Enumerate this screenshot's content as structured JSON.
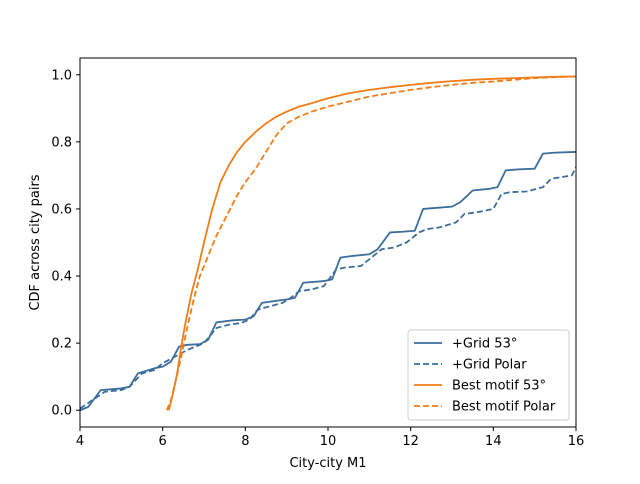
{
  "chart_data": {
    "type": "line",
    "title": "",
    "xlabel": "City-city M1",
    "ylabel": "CDF across city pairs",
    "xlim": [
      4,
      16
    ],
    "ylim": [
      -0.05,
      1.05
    ],
    "xticks": [
      4,
      6,
      8,
      10,
      12,
      14,
      16
    ],
    "yticks": [
      0.0,
      0.2,
      0.4,
      0.6,
      0.8,
      1.0
    ],
    "grid": false,
    "legend": {
      "position": "lower-right"
    },
    "series": [
      {
        "name": "+Grid 53°",
        "color": "#3b6e9b",
        "dash": "solid",
        "x": [
          4.0,
          4.2,
          4.5,
          5.0,
          5.2,
          5.4,
          5.8,
          6.0,
          6.2,
          6.4,
          6.6,
          6.9,
          7.1,
          7.3,
          7.7,
          8.0,
          8.2,
          8.4,
          8.8,
          9.0,
          9.2,
          9.4,
          9.9,
          10.1,
          10.3,
          10.6,
          11.0,
          11.2,
          11.5,
          11.8,
          12.1,
          12.3,
          12.6,
          13.0,
          13.2,
          13.5,
          13.9,
          14.1,
          14.3,
          14.6,
          15.0,
          15.2,
          15.5,
          16.0
        ],
        "y": [
          0.0,
          0.01,
          0.06,
          0.065,
          0.07,
          0.11,
          0.125,
          0.13,
          0.145,
          0.19,
          0.195,
          0.197,
          0.21,
          0.262,
          0.268,
          0.27,
          0.28,
          0.32,
          0.327,
          0.33,
          0.335,
          0.38,
          0.385,
          0.39,
          0.455,
          0.46,
          0.465,
          0.48,
          0.53,
          0.532,
          0.535,
          0.6,
          0.603,
          0.607,
          0.62,
          0.655,
          0.66,
          0.665,
          0.715,
          0.718,
          0.72,
          0.765,
          0.768,
          0.77
        ]
      },
      {
        "name": "+Grid Polar",
        "color": "#3b6e9b",
        "dash": "dashed",
        "x": [
          4.0,
          4.3,
          4.6,
          5.0,
          5.2,
          5.5,
          5.8,
          6.0,
          6.3,
          6.6,
          6.8,
          7.0,
          7.3,
          7.6,
          7.9,
          8.1,
          8.3,
          8.6,
          8.9,
          9.1,
          9.3,
          9.6,
          9.9,
          10.2,
          10.4,
          10.8,
          11.1,
          11.3,
          11.6,
          11.9,
          12.2,
          12.4,
          12.7,
          13.1,
          13.3,
          13.6,
          14.0,
          14.2,
          14.4,
          14.8,
          15.2,
          15.4,
          15.9,
          16.0
        ],
        "y": [
          0.005,
          0.03,
          0.055,
          0.06,
          0.07,
          0.11,
          0.12,
          0.14,
          0.16,
          0.18,
          0.19,
          0.2,
          0.245,
          0.255,
          0.26,
          0.27,
          0.3,
          0.31,
          0.32,
          0.335,
          0.355,
          0.36,
          0.37,
          0.42,
          0.425,
          0.43,
          0.46,
          0.48,
          0.485,
          0.5,
          0.53,
          0.54,
          0.545,
          0.56,
          0.585,
          0.59,
          0.6,
          0.645,
          0.65,
          0.652,
          0.665,
          0.69,
          0.7,
          0.725
        ]
      },
      {
        "name": "Best motif 53°",
        "color": "#f07d1a",
        "dash": "solid",
        "x": [
          6.15,
          6.25,
          6.35,
          6.45,
          6.55,
          6.7,
          6.85,
          7.0,
          7.2,
          7.4,
          7.6,
          7.8,
          8.0,
          8.25,
          8.5,
          8.75,
          9.0,
          9.3,
          9.6,
          10.0,
          10.5,
          11.0,
          11.5,
          12.0,
          12.5,
          13.0,
          13.5,
          14.0,
          14.5,
          15.0,
          15.5,
          16.0
        ],
        "y": [
          0.0,
          0.05,
          0.11,
          0.19,
          0.26,
          0.35,
          0.42,
          0.5,
          0.6,
          0.68,
          0.73,
          0.77,
          0.8,
          0.83,
          0.855,
          0.875,
          0.89,
          0.905,
          0.915,
          0.93,
          0.945,
          0.955,
          0.963,
          0.97,
          0.976,
          0.981,
          0.985,
          0.988,
          0.99,
          0.992,
          0.994,
          0.995
        ]
      },
      {
        "name": "Best motif Polar",
        "color": "#f07d1a",
        "dash": "dashed",
        "x": [
          6.1,
          6.2,
          6.3,
          6.45,
          6.6,
          6.75,
          6.9,
          7.1,
          7.3,
          7.55,
          7.8,
          8.0,
          8.25,
          8.5,
          8.75,
          9.0,
          9.3,
          9.6,
          10.0,
          10.5,
          11.0,
          11.5,
          12.0,
          12.5,
          13.0,
          13.5,
          14.0,
          14.5,
          15.0,
          15.5,
          16.0
        ],
        "y": [
          0.0,
          0.03,
          0.08,
          0.16,
          0.25,
          0.33,
          0.4,
          0.46,
          0.52,
          0.58,
          0.64,
          0.68,
          0.72,
          0.77,
          0.82,
          0.855,
          0.875,
          0.89,
          0.905,
          0.92,
          0.935,
          0.945,
          0.955,
          0.963,
          0.97,
          0.976,
          0.98,
          0.985,
          0.99,
          0.993,
          0.995
        ]
      }
    ]
  }
}
